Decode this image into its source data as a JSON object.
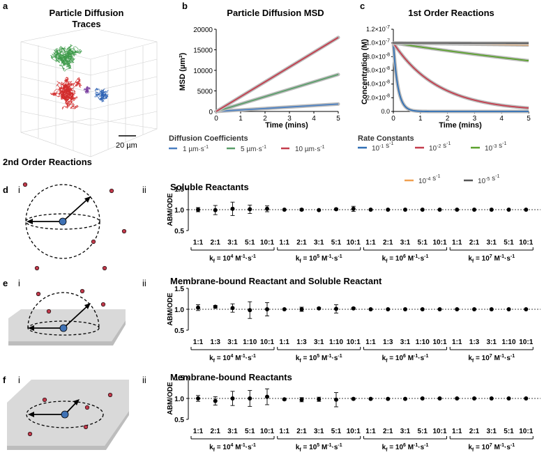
{
  "panel_letters": {
    "a": "a",
    "b": "b",
    "c": "c",
    "d": "d",
    "e": "e",
    "f": "f",
    "i": "i",
    "ii": "ii"
  },
  "panel_a": {
    "title_line1": "Particle Diffusion",
    "title_line2": "Traces",
    "scalebar": "20 µm"
  },
  "second_order_heading": "2nd Order Reactions",
  "legend_b": {
    "title": "Diffusion Coefficients",
    "items": [
      {
        "label": "1 µm·s-1",
        "color": "#4a7fc1"
      },
      {
        "label": "5 µm·s-1",
        "color": "#5a9e6a"
      },
      {
        "label": "10 µm·s-1",
        "color": "#c43c4c"
      }
    ]
  },
  "legend_c": {
    "title": "Rate Constants",
    "items": [
      {
        "label": "10-1 s-1",
        "color": "#2f6fb5"
      },
      {
        "label": "10-2 s-1",
        "color": "#c43c4c"
      },
      {
        "label": "10-3 s-1",
        "color": "#5aa02c"
      },
      {
        "label": "10-4 s-1",
        "color": "#f0a050"
      },
      {
        "label": "10-5 s-1",
        "color": "#555555"
      }
    ]
  },
  "rows": [
    {
      "title": "Soluble Reactants",
      "ratios": [
        "1:1",
        "2:1",
        "3:1",
        "5:1",
        "10:1"
      ],
      "kf": [
        "kf = 104 M-1·s-1",
        "kf = 105 M-1·s-1",
        "kf = 106 M-1·s-1",
        "kf = 107 M-1·s-1"
      ]
    },
    {
      "title": "Membrane-bound Reactant and Soluble Reactant",
      "ratios": [
        "1:1",
        "1:3",
        "3:1",
        "1:10",
        "10:1"
      ],
      "kf": [
        "kf = 104 M-1·s-1",
        "kf = 105 M-1·s-1",
        "kf = 106 M-1·s-1",
        "kf = 107 M-1·s-1"
      ]
    },
    {
      "title": "Membrane-bound Reactants",
      "ratios": [
        "1:1",
        "2:1",
        "3:1",
        "5:1",
        "10:1"
      ],
      "kf": [
        "kf = 104 M-1·s-1",
        "kf = 105 M-1·s-1",
        "kf = 106 M-1·s-1",
        "kf = 107 M-1·s-1"
      ]
    }
  ],
  "chart_data": [
    {
      "type": "line",
      "title": "Particle Diffusion MSD",
      "xlabel": "Time (mins)",
      "ylabel": "MSD (µm²)",
      "xlim": [
        0,
        5
      ],
      "ylim": [
        0,
        20000
      ],
      "xticks": [
        "0",
        "1",
        "2",
        "3",
        "4",
        "5"
      ],
      "yticks": [
        "0",
        "5000",
        "10000",
        "15000",
        "20000"
      ],
      "x": [
        0,
        5
      ],
      "series": [
        {
          "name": "1 µm·s-1",
          "values": [
            0,
            1800
          ]
        },
        {
          "name": "5 µm·s-1",
          "values": [
            0,
            9000
          ]
        },
        {
          "name": "10 µm·s-1",
          "values": [
            0,
            18000
          ]
        }
      ]
    },
    {
      "type": "line",
      "title": "1st Order Reactions",
      "xlabel": "Time (mins)",
      "ylabel": "Concentration (M)",
      "xlim": [
        0,
        5
      ],
      "ylim": [
        0,
        1.2e-07
      ],
      "xticks": [
        "0",
        "1",
        "2",
        "3",
        "4",
        "5"
      ],
      "yticks": [
        "0.0",
        "2.0×10-8",
        "4.0×10-8",
        "6.0×10-8",
        "8.0×10-8",
        "1.0×10-7",
        "1.2×10-7"
      ],
      "series": [
        {
          "name": "10-1 s-1",
          "k": 0.1
        },
        {
          "name": "10-2 s-1",
          "k": 0.01
        },
        {
          "name": "10-3 s-1",
          "k": 0.001
        },
        {
          "name": "10-4 s-1",
          "k": 0.0001
        },
        {
          "name": "10-5 s-1",
          "k": 1e-05
        }
      ]
    },
    {
      "type": "scatter",
      "panel": "d",
      "ylabel": "ABM/ODE",
      "ylim": [
        0.5,
        1.5
      ],
      "yticks": [
        "0.5",
        "1.0",
        "1.5"
      ],
      "values": [
        1.0,
        0.99,
        1.02,
        1.01,
        1.02,
        1.0,
        1.0,
        0.99,
        1.01,
        1.02,
        1.0,
        1.0,
        1.0,
        1.0,
        1.0,
        1.0,
        1.0,
        1.0,
        1.0,
        1.0
      ],
      "errors": [
        0.05,
        0.11,
        0.16,
        0.1,
        0.07,
        0.01,
        0.02,
        0.01,
        0.02,
        0.06,
        0.01,
        0.01,
        0.01,
        0.01,
        0.01,
        0.01,
        0.01,
        0.01,
        0.01,
        0.01
      ]
    },
    {
      "type": "scatter",
      "panel": "e",
      "ylabel": "ABM/ODE",
      "ylim": [
        0.5,
        1.5
      ],
      "yticks": [
        "0.5",
        "1.0",
        "1.5"
      ],
      "values": [
        1.04,
        1.06,
        1.03,
        0.98,
        1.0,
        1.0,
        1.0,
        1.02,
        1.01,
        1.02,
        1.0,
        1.0,
        1.0,
        1.0,
        1.0,
        1.0,
        1.0,
        1.0,
        1.0,
        1.0
      ],
      "errors": [
        0.07,
        0.03,
        0.1,
        0.2,
        0.16,
        0.01,
        0.05,
        0.02,
        0.1,
        0.02,
        0.01,
        0.01,
        0.01,
        0.01,
        0.01,
        0.01,
        0.01,
        0.01,
        0.01,
        0.01
      ]
    },
    {
      "type": "scatter",
      "panel": "f",
      "ylabel": "ABM/ODE",
      "ylim": [
        0.5,
        1.5
      ],
      "yticks": [
        "0.5",
        "1.0",
        "1.5"
      ],
      "values": [
        1.0,
        0.94,
        1.0,
        1.0,
        1.04,
        0.98,
        0.97,
        0.98,
        0.97,
        0.99,
        0.99,
        0.99,
        0.99,
        1.0,
        1.0,
        1.0,
        1.0,
        1.0,
        1.0,
        1.0
      ],
      "errors": [
        0.07,
        0.1,
        0.17,
        0.19,
        0.19,
        0.02,
        0.05,
        0.05,
        0.17,
        0.02,
        0.01,
        0.01,
        0.01,
        0.01,
        0.01,
        0.01,
        0.01,
        0.01,
        0.01,
        0.01
      ]
    }
  ]
}
